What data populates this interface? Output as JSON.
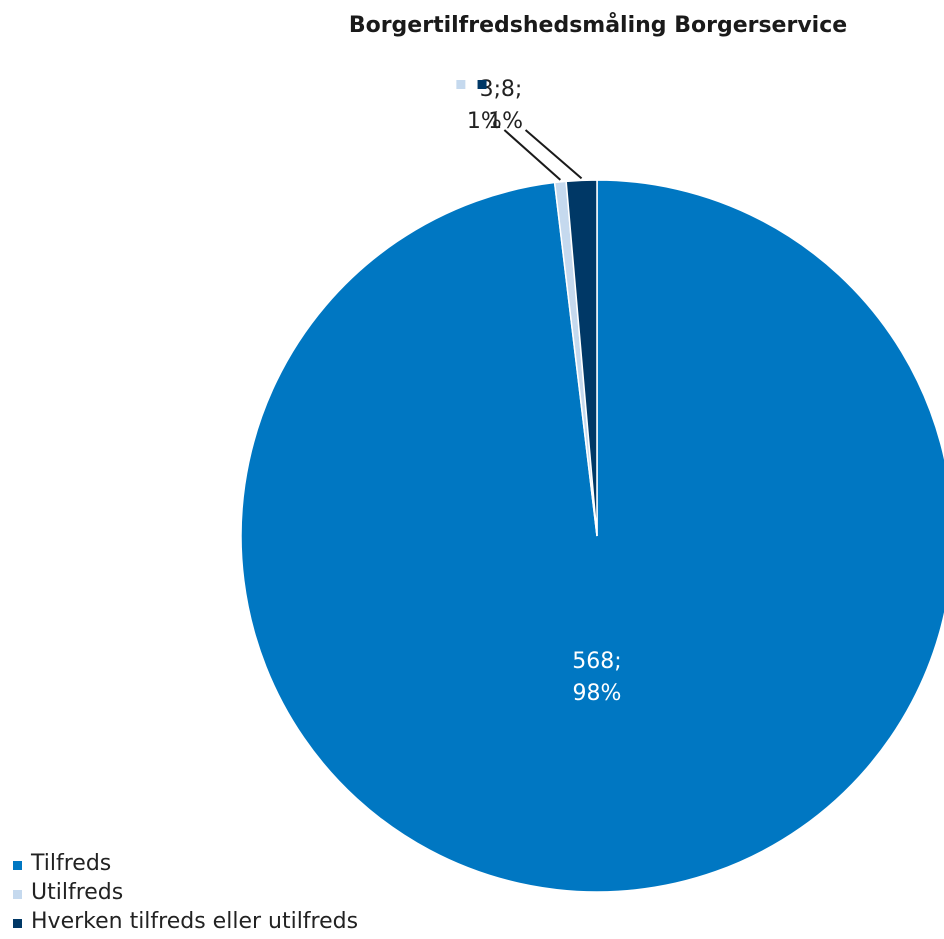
{
  "chart_data": {
    "type": "pie",
    "title": "Borgertilfredshedsmåling Borgerservice",
    "slices": [
      {
        "name": "Tilfreds",
        "value": 568,
        "percent_label": "98%",
        "value_label": "568;",
        "color": "#0077C2"
      },
      {
        "name": "Utilfreds",
        "value": 3,
        "percent_label": "1%",
        "value_label": "3;",
        "color": "#C5D9EE"
      },
      {
        "name": "Hverken tilfreds eller utilfreds",
        "value": 8,
        "percent_label": "1%",
        "value_label": "8;",
        "color": "#003866"
      }
    ],
    "legend_position": "bottom-left"
  }
}
